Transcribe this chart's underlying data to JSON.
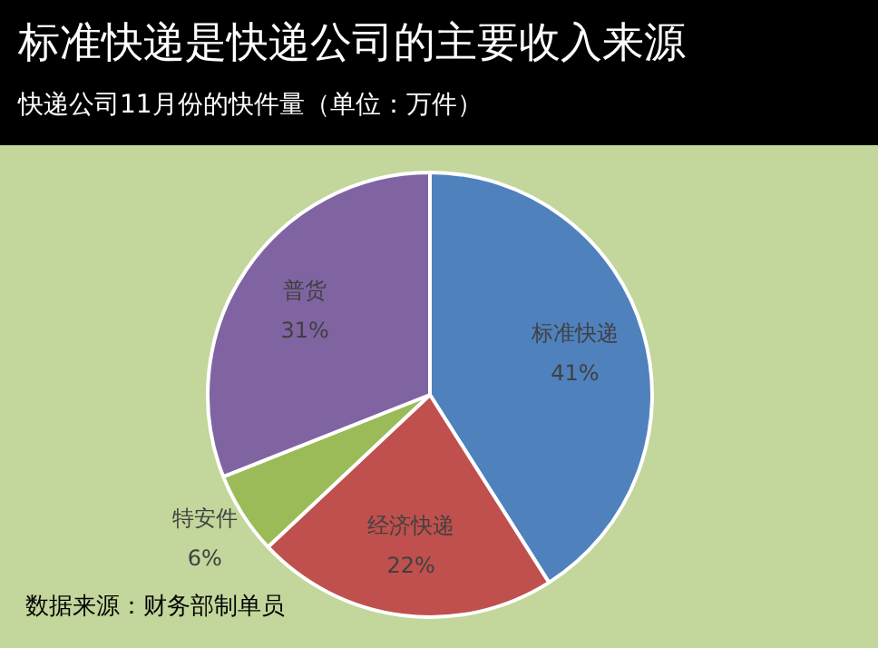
{
  "chart_data": {
    "type": "pie",
    "title": "标准快递是快递公司的主要收入来源",
    "subtitle": "快递公司11月份的快件量（单位：万件）",
    "categories": [
      "标准快递",
      "经济快递",
      "特安件",
      "普货"
    ],
    "values": [
      41,
      22,
      6,
      31
    ],
    "value_labels": [
      "41%",
      "22%",
      "6%",
      "31%"
    ],
    "colors": [
      "#4f81bd",
      "#c0504d",
      "#9bbb59",
      "#8064a2"
    ],
    "legend": false,
    "annotations": [
      "数据来源：财务部制单员"
    ]
  }
}
